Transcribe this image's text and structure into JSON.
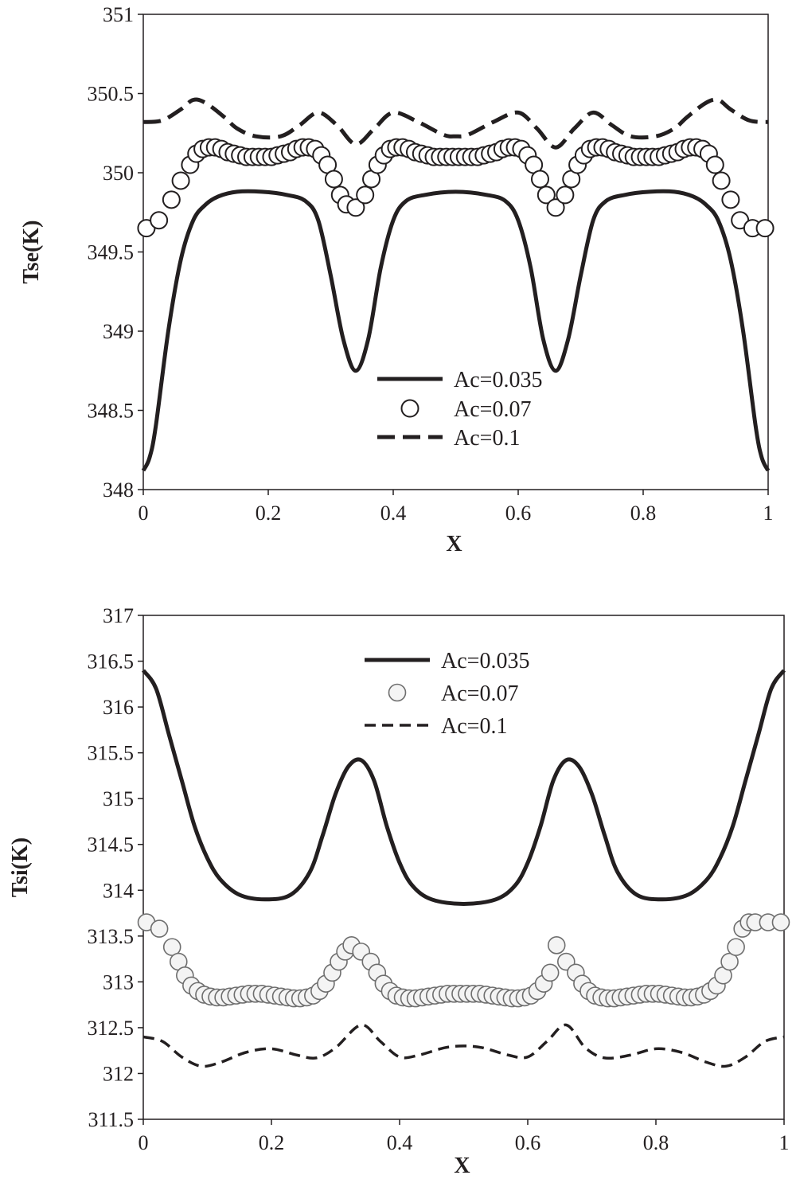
{
  "chart_data": [
    {
      "type": "line",
      "title": "",
      "xlabel": "X",
      "ylabel": "Tse(K)",
      "xlim": [
        0,
        1
      ],
      "ylim": [
        348,
        351
      ],
      "xticks": [
        "0",
        "0.2",
        "0.4",
        "0.6",
        "0.8",
        "1"
      ],
      "yticks": [
        "348",
        "348.5",
        "349",
        "349.5",
        "350",
        "350.5",
        "351"
      ],
      "grid": false,
      "legend_position": "bottom-center",
      "series": [
        {
          "name": "Ac=0.035",
          "style": "solid",
          "x": [
            0,
            0.01,
            0.02,
            0.04,
            0.06,
            0.08,
            0.1,
            0.12,
            0.15,
            0.19,
            0.23,
            0.26,
            0.28,
            0.3,
            0.32,
            0.34,
            0.36,
            0.38,
            0.4,
            0.42,
            0.45,
            0.5,
            0.55,
            0.58,
            0.6,
            0.62,
            0.64,
            0.66,
            0.68,
            0.7,
            0.72,
            0.74,
            0.77,
            0.81,
            0.85,
            0.88,
            0.9,
            0.92,
            0.94,
            0.96,
            0.98,
            0.99,
            1
          ],
          "y": [
            348.12,
            348.2,
            348.4,
            349.0,
            349.45,
            349.7,
            349.8,
            349.85,
            349.88,
            349.88,
            349.86,
            349.82,
            349.7,
            349.35,
            348.95,
            348.75,
            348.95,
            349.4,
            349.7,
            349.82,
            349.86,
            349.88,
            349.86,
            349.82,
            349.7,
            349.4,
            348.95,
            348.75,
            348.95,
            349.35,
            349.7,
            349.82,
            349.86,
            349.88,
            349.88,
            349.85,
            349.8,
            349.7,
            349.45,
            349.0,
            348.4,
            348.2,
            348.12
          ]
        },
        {
          "name": "Ac=0.07",
          "style": "markers",
          "x": [
            0.005,
            0.025,
            0.045,
            0.06,
            0.075,
            0.085,
            0.095,
            0.105,
            0.115,
            0.125,
            0.135,
            0.145,
            0.155,
            0.165,
            0.175,
            0.185,
            0.195,
            0.205,
            0.215,
            0.225,
            0.235,
            0.245,
            0.255,
            0.265,
            0.275,
            0.285,
            0.295,
            0.305,
            0.315,
            0.325,
            0.34,
            0.355,
            0.365,
            0.375,
            0.385,
            0.395,
            0.405,
            0.415,
            0.425,
            0.435,
            0.445,
            0.455,
            0.465,
            0.475,
            0.485,
            0.495,
            0.505,
            0.515,
            0.525,
            0.535,
            0.545,
            0.555,
            0.565,
            0.575,
            0.585,
            0.595,
            0.605,
            0.615,
            0.625,
            0.635,
            0.645,
            0.66,
            0.675,
            0.685,
            0.695,
            0.705,
            0.715,
            0.725,
            0.735,
            0.745,
            0.755,
            0.765,
            0.775,
            0.785,
            0.795,
            0.805,
            0.815,
            0.825,
            0.835,
            0.845,
            0.855,
            0.865,
            0.875,
            0.885,
            0.895,
            0.905,
            0.915,
            0.925,
            0.94,
            0.955,
            0.975,
            0.995
          ],
          "y": [
            349.65,
            349.7,
            349.83,
            349.95,
            350.05,
            350.12,
            350.15,
            350.16,
            350.16,
            350.15,
            350.13,
            350.12,
            350.11,
            350.1,
            350.1,
            350.1,
            350.1,
            350.1,
            350.11,
            350.12,
            350.13,
            350.15,
            350.16,
            350.16,
            350.15,
            350.11,
            350.05,
            349.96,
            349.86,
            349.8,
            349.78,
            349.86,
            349.96,
            350.05,
            350.11,
            350.15,
            350.16,
            350.16,
            350.15,
            350.13,
            350.12,
            350.11,
            350.1,
            350.1,
            350.1,
            350.1,
            350.1,
            350.1,
            350.1,
            350.1,
            350.11,
            350.12,
            350.13,
            350.15,
            350.16,
            350.16,
            350.15,
            350.11,
            350.05,
            349.96,
            349.86,
            349.78,
            349.86,
            349.96,
            350.05,
            350.11,
            350.15,
            350.16,
            350.16,
            350.15,
            350.13,
            350.12,
            350.11,
            350.1,
            350.1,
            350.1,
            350.1,
            350.1,
            350.11,
            350.12,
            350.13,
            350.15,
            350.16,
            350.16,
            350.15,
            350.12,
            350.05,
            349.95,
            349.83,
            349.7,
            349.65,
            349.65
          ]
        },
        {
          "name": "Ac=0.1",
          "style": "dashed",
          "x": [
            0,
            0.03,
            0.06,
            0.08,
            0.1,
            0.13,
            0.15,
            0.18,
            0.22,
            0.25,
            0.28,
            0.31,
            0.34,
            0.37,
            0.4,
            0.44,
            0.48,
            0.5,
            0.52,
            0.56,
            0.6,
            0.63,
            0.66,
            0.69,
            0.72,
            0.75,
            0.78,
            0.82,
            0.85,
            0.87,
            0.9,
            0.92,
            0.94,
            0.97,
            1
          ],
          "y": [
            350.32,
            350.33,
            350.4,
            350.46,
            350.44,
            350.35,
            350.28,
            350.23,
            350.23,
            350.3,
            350.38,
            350.3,
            350.18,
            350.28,
            350.38,
            350.32,
            350.24,
            350.23,
            350.24,
            350.32,
            350.38,
            350.28,
            350.16,
            350.28,
            350.38,
            350.3,
            350.23,
            350.23,
            350.28,
            350.35,
            350.44,
            350.46,
            350.4,
            350.33,
            350.32
          ]
        }
      ]
    },
    {
      "type": "line",
      "title": "",
      "xlabel": "X",
      "ylabel": "Tsi(K)",
      "xlim": [
        0,
        1
      ],
      "ylim": [
        311.5,
        317
      ],
      "xticks": [
        "0",
        "0.2",
        "0.4",
        "0.6",
        "0.8",
        "1"
      ],
      "yticks": [
        "311.5",
        "312",
        "312.5",
        "313",
        "313.5",
        "314",
        "314.5",
        "315",
        "315.5",
        "316",
        "316.5",
        "317"
      ],
      "grid": false,
      "legend_position": "top-center",
      "series": [
        {
          "name": "Ac=0.035",
          "style": "solid",
          "x": [
            0,
            0.02,
            0.04,
            0.06,
            0.08,
            0.1,
            0.12,
            0.15,
            0.19,
            0.23,
            0.26,
            0.28,
            0.3,
            0.32,
            0.34,
            0.36,
            0.38,
            0.4,
            0.42,
            0.45,
            0.5,
            0.55,
            0.58,
            0.6,
            0.62,
            0.64,
            0.66,
            0.68,
            0.7,
            0.72,
            0.74,
            0.77,
            0.81,
            0.85,
            0.88,
            0.9,
            0.92,
            0.94,
            0.96,
            0.98,
            1
          ],
          "y": [
            316.4,
            316.2,
            315.7,
            315.2,
            314.7,
            314.35,
            314.12,
            313.95,
            313.9,
            313.95,
            314.2,
            314.6,
            315.05,
            315.35,
            315.42,
            315.2,
            314.7,
            314.3,
            314.05,
            313.9,
            313.85,
            313.9,
            314.05,
            314.3,
            314.7,
            315.2,
            315.42,
            315.35,
            315.05,
            314.6,
            314.2,
            313.95,
            313.9,
            313.95,
            314.12,
            314.35,
            314.7,
            315.2,
            315.7,
            316.2,
            316.4
          ]
        },
        {
          "name": "Ac=0.07",
          "style": "markers",
          "x": [
            0.005,
            0.025,
            0.045,
            0.055,
            0.065,
            0.075,
            0.085,
            0.095,
            0.105,
            0.115,
            0.125,
            0.135,
            0.145,
            0.155,
            0.165,
            0.175,
            0.185,
            0.195,
            0.205,
            0.215,
            0.225,
            0.235,
            0.245,
            0.255,
            0.265,
            0.275,
            0.285,
            0.295,
            0.305,
            0.315,
            0.325,
            0.34,
            0.355,
            0.365,
            0.375,
            0.385,
            0.395,
            0.405,
            0.415,
            0.425,
            0.435,
            0.445,
            0.455,
            0.465,
            0.475,
            0.485,
            0.495,
            0.505,
            0.515,
            0.525,
            0.535,
            0.545,
            0.555,
            0.565,
            0.575,
            0.585,
            0.595,
            0.605,
            0.615,
            0.625,
            0.635,
            0.645,
            0.66,
            0.675,
            0.685,
            0.695,
            0.705,
            0.715,
            0.725,
            0.735,
            0.745,
            0.755,
            0.765,
            0.775,
            0.785,
            0.795,
            0.805,
            0.815,
            0.825,
            0.835,
            0.845,
            0.855,
            0.865,
            0.875,
            0.885,
            0.895,
            0.905,
            0.915,
            0.925,
            0.935,
            0.945,
            0.955,
            0.975,
            0.995
          ],
          "y": [
            313.65,
            313.58,
            313.38,
            313.22,
            313.07,
            312.96,
            312.9,
            312.86,
            312.84,
            312.83,
            312.83,
            312.84,
            312.85,
            312.86,
            312.87,
            312.87,
            312.87,
            312.86,
            312.85,
            312.84,
            312.83,
            312.82,
            312.82,
            312.83,
            312.85,
            312.9,
            312.98,
            313.1,
            313.22,
            313.33,
            313.4,
            313.33,
            313.22,
            313.1,
            312.98,
            312.9,
            312.85,
            312.83,
            312.82,
            312.82,
            312.83,
            312.84,
            312.85,
            312.86,
            312.87,
            312.87,
            312.87,
            312.87,
            312.87,
            312.87,
            312.86,
            312.85,
            312.84,
            312.83,
            312.82,
            312.82,
            312.83,
            312.85,
            312.9,
            312.98,
            313.1,
            313.4,
            313.22,
            313.1,
            312.98,
            312.9,
            312.85,
            312.83,
            312.82,
            312.82,
            312.83,
            312.84,
            312.85,
            312.86,
            312.87,
            312.87,
            312.87,
            312.86,
            312.85,
            312.84,
            312.83,
            312.83,
            312.84,
            312.86,
            312.9,
            312.96,
            313.07,
            313.22,
            313.38,
            313.58,
            313.65,
            313.65,
            313.65,
            313.65
          ]
        },
        {
          "name": "Ac=0.1",
          "style": "dashed",
          "x": [
            0,
            0.03,
            0.06,
            0.09,
            0.12,
            0.16,
            0.2,
            0.24,
            0.27,
            0.3,
            0.34,
            0.37,
            0.4,
            0.43,
            0.47,
            0.5,
            0.53,
            0.57,
            0.6,
            0.63,
            0.66,
            0.69,
            0.72,
            0.76,
            0.8,
            0.84,
            0.88,
            0.91,
            0.94,
            0.97,
            1
          ],
          "y": [
            312.4,
            312.35,
            312.18,
            312.08,
            312.12,
            312.23,
            312.27,
            312.2,
            312.17,
            312.28,
            312.53,
            312.35,
            312.18,
            312.2,
            312.28,
            312.3,
            312.28,
            312.2,
            312.18,
            312.35,
            312.53,
            312.28,
            312.17,
            312.2,
            312.27,
            312.23,
            312.12,
            312.08,
            312.18,
            312.35,
            312.4
          ]
        }
      ]
    }
  ]
}
